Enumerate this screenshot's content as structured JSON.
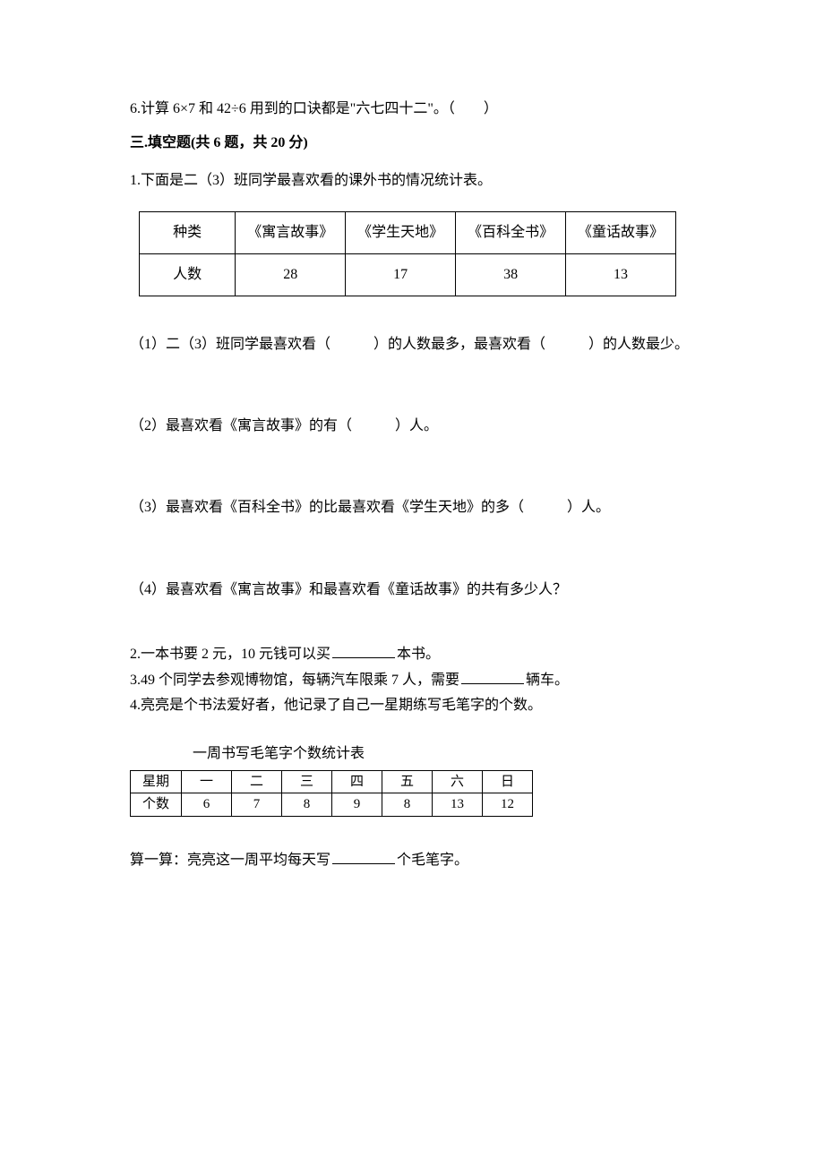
{
  "q6": "6.计算 6×7 和 42÷6 用到的口诀都是\"六七四十二\"。（　　）",
  "section3_header": "三.填空题(共 6 题，共 20 分)",
  "fill1_intro": "1.下面是二（3）班同学最喜欢看的课外书的情况统计表。",
  "books_table": {
    "row1": [
      "种类",
      "《寓言故事》",
      "《学生天地》",
      "《百科全书》",
      "《童话故事》"
    ],
    "row2": [
      "人数",
      "28",
      "17",
      "38",
      "13"
    ]
  },
  "fill1_sub1": "（1）二（3）班同学最喜欢看（　　　）的人数最多，最喜欢看（　　　）的人数最少。",
  "fill1_sub2": "（2）最喜欢看《寓言故事》的有（　　　）人。",
  "fill1_sub3": "（3）最喜欢看《百科全书》的比最喜欢看《学生天地》的多（　　　）人。",
  "fill1_sub4": "（4）最喜欢看《寓言故事》和最喜欢看《童话故事》的共有多少人？",
  "fill2_pre": "2.一本书要 2 元，10 元钱可以买",
  "fill2_post": "本书。",
  "fill3_pre": "3.49 个同学去参观博物馆，每辆汽车限乘 7 人，需要",
  "fill3_post": "辆车。",
  "fill4": "4.亮亮是个书法爱好者，他记录了自己一星期练写毛笔字的个数。",
  "calligraphy_title": "一周书写毛笔字个数统计表",
  "calligraphy_table": {
    "row1": [
      "星期",
      "一",
      "二",
      "三",
      "四",
      "五",
      "六",
      "日"
    ],
    "row2": [
      "个数",
      "6",
      "7",
      "8",
      "9",
      "8",
      "13",
      "12"
    ]
  },
  "fill4_calc_pre": "算一算：亮亮这一周平均每天写",
  "fill4_calc_post": "个毛笔字。"
}
